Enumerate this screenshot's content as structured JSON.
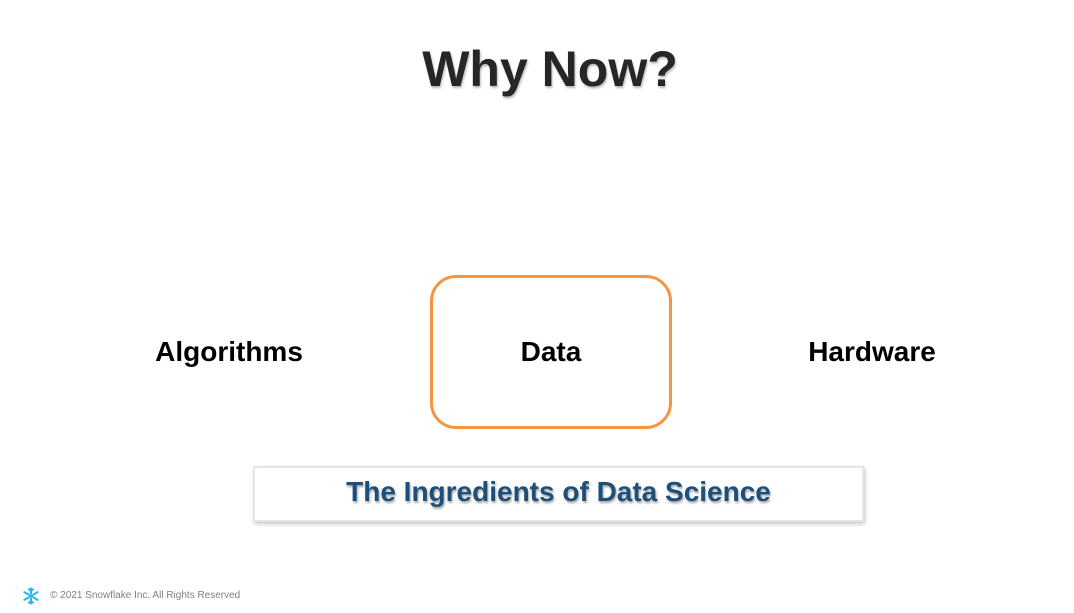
{
  "slide": {
    "title": "Why Now?",
    "ingredients": {
      "left": "Algorithms",
      "center": "Data",
      "right": "Hardware"
    },
    "highlight_color": "#f7953f",
    "caption": "The Ingredients of Data Science",
    "caption_color": "#1c4f79"
  },
  "footer": {
    "logo_icon": "snowflake-logo-icon",
    "logo_color": "#29b5e8",
    "copyright": "© 2021 Snowflake Inc. All Rights Reserved"
  }
}
